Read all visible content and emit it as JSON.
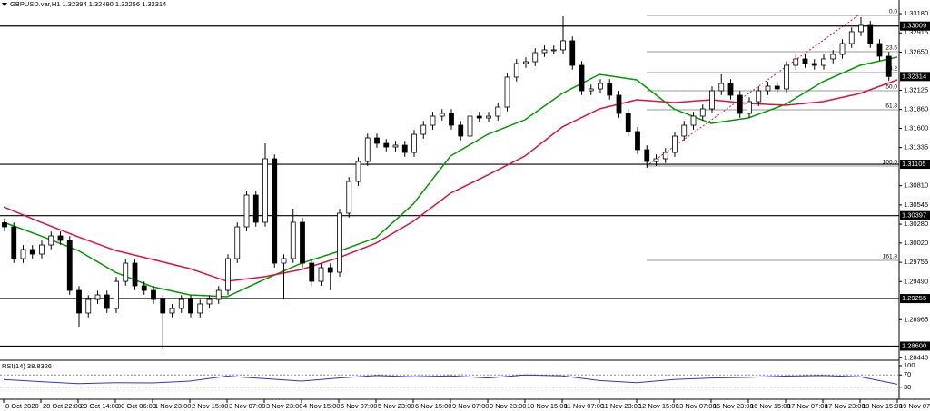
{
  "header": "GBPUSD.var,H1  1.32394 1.32490 1.32256 1.32314",
  "chart_data": [
    {
      "type": "candlestick",
      "categories": [
        "8 Oct 2020",
        "28 Oct 22:00",
        "29 Oct 14:00",
        "30 Oct 06:00",
        "1 Nov 23:00",
        "2 Nov 15:00",
        "3 Nov 07:00",
        "3 Nov 23:00",
        "4 Nov 15:00",
        "5 Nov 07:00",
        "5 Nov 23:00",
        "6 Nov 15:00",
        "9 Nov 07:00",
        "9 Nov 23:00",
        "10 Nov 15:00",
        "11 Nov 07:00",
        "11 Nov 23:00",
        "12 Nov 15:00",
        "13 Nov 07:00",
        "15 Nov 23:00",
        "16 Nov 15:00",
        "17 Nov 07:00",
        "17 Nov 23:00",
        "18 Nov 15:00",
        "19 Nov 07:00"
      ],
      "candles": [
        [
          1.303,
          1.3036,
          1.30183,
          1.30243
        ],
        [
          1.30243,
          1.30303,
          1.29746,
          1.29806
        ],
        [
          1.29806,
          1.29991,
          1.29746,
          1.29931
        ],
        [
          1.29931,
          1.29991,
          1.29808,
          1.29868
        ],
        [
          1.29868,
          1.30053,
          1.29808,
          1.29993
        ],
        [
          1.29993,
          1.30178,
          1.29933,
          1.30118
        ],
        [
          1.30118,
          1.30178,
          1.29996,
          1.30056
        ],
        [
          1.30056,
          1.30116,
          1.29308,
          1.29368
        ],
        [
          1.29368,
          1.29428,
          1.28868,
          1.29056
        ],
        [
          1.29056,
          1.29303,
          1.28996,
          1.29243
        ],
        [
          1.29243,
          1.29366,
          1.29183,
          1.29306
        ],
        [
          1.29306,
          1.29366,
          1.29058,
          1.29118
        ],
        [
          1.29118,
          1.29553,
          1.29058,
          1.29493
        ],
        [
          1.29493,
          1.29803,
          1.29433,
          1.29743
        ],
        [
          1.29743,
          1.29803,
          1.29371,
          1.29431
        ],
        [
          1.29431,
          1.29491,
          1.29308,
          1.29368
        ],
        [
          1.29368,
          1.29428,
          1.29183,
          1.29243
        ],
        [
          1.29243,
          1.29303,
          1.28556,
          1.29056
        ],
        [
          1.29056,
          1.29178,
          1.28996,
          1.29118
        ],
        [
          1.29118,
          1.29303,
          1.29058,
          1.29243
        ],
        [
          1.29243,
          1.29303,
          1.28996,
          1.29056
        ],
        [
          1.29056,
          1.29241,
          1.28996,
          1.29181
        ],
        [
          1.29181,
          1.29303,
          1.29121,
          1.29243
        ],
        [
          1.29243,
          1.29428,
          1.29183,
          1.29368
        ],
        [
          1.29368,
          1.29866,
          1.29308,
          1.29806
        ],
        [
          1.29806,
          1.30303,
          1.29746,
          1.30243
        ],
        [
          1.30243,
          1.30741,
          1.30183,
          1.30681
        ],
        [
          1.30681,
          1.30741,
          1.30246,
          1.30306
        ],
        [
          1.30306,
          1.31393,
          1.30246,
          1.31181
        ],
        [
          1.31181,
          1.31241,
          1.29683,
          1.29743
        ],
        [
          1.29743,
          1.29866,
          1.29243,
          1.29806
        ],
        [
          1.29806,
          1.30493,
          1.29746,
          1.30306
        ],
        [
          1.30306,
          1.30366,
          1.29683,
          1.29743
        ],
        [
          1.29743,
          1.29803,
          1.29433,
          1.29493
        ],
        [
          1.29493,
          1.29741,
          1.29433,
          1.29681
        ],
        [
          1.29681,
          1.29741,
          1.29368,
          1.29618
        ],
        [
          1.29618,
          1.30491,
          1.29558,
          1.30431
        ],
        [
          1.30431,
          1.30928,
          1.30371,
          1.30868
        ],
        [
          1.30868,
          1.31203,
          1.30808,
          1.31143
        ],
        [
          1.31143,
          1.31528,
          1.31083,
          1.31468
        ],
        [
          1.31468,
          1.31528,
          1.31333,
          1.31393
        ],
        [
          1.31393,
          1.31453,
          1.31283,
          1.31343
        ],
        [
          1.31343,
          1.31428,
          1.31283,
          1.31368
        ],
        [
          1.31368,
          1.31428,
          1.31208,
          1.31268
        ],
        [
          1.31268,
          1.31578,
          1.31208,
          1.31518
        ],
        [
          1.31518,
          1.31703,
          1.31458,
          1.31643
        ],
        [
          1.31643,
          1.31828,
          1.31583,
          1.31768
        ],
        [
          1.31768,
          1.31866,
          1.31708,
          1.31806
        ],
        [
          1.31806,
          1.31866,
          1.31583,
          1.31643
        ],
        [
          1.31643,
          1.31703,
          1.31433,
          1.31493
        ],
        [
          1.31493,
          1.31828,
          1.31433,
          1.31768
        ],
        [
          1.31768,
          1.31828,
          1.31683,
          1.31743
        ],
        [
          1.31743,
          1.31828,
          1.31683,
          1.31768
        ],
        [
          1.31768,
          1.31953,
          1.31708,
          1.31893
        ],
        [
          1.31893,
          1.32366,
          1.31833,
          1.32306
        ],
        [
          1.32306,
          1.32553,
          1.32246,
          1.32493
        ],
        [
          1.32493,
          1.32578,
          1.32433,
          1.32518
        ],
        [
          1.32518,
          1.32703,
          1.32458,
          1.32643
        ],
        [
          1.32643,
          1.32741,
          1.32583,
          1.32681
        ],
        [
          1.32681,
          1.32741,
          1.32621,
          1.32681
        ],
        [
          1.32681,
          1.33143,
          1.32621,
          1.32806
        ],
        [
          1.32806,
          1.32866,
          1.32408,
          1.32468
        ],
        [
          1.32468,
          1.32528,
          1.32058,
          1.32118
        ],
        [
          1.32118,
          1.32203,
          1.32058,
          1.32143
        ],
        [
          1.32143,
          1.32278,
          1.32083,
          1.32218
        ],
        [
          1.32218,
          1.32278,
          1.31996,
          1.32056
        ],
        [
          1.32056,
          1.32116,
          1.31746,
          1.31806
        ],
        [
          1.31806,
          1.31866,
          1.31496,
          1.31556
        ],
        [
          1.31556,
          1.31616,
          1.31246,
          1.31306
        ],
        [
          1.31306,
          1.31366,
          1.31056,
          1.31143
        ],
        [
          1.31143,
          1.31241,
          1.31083,
          1.31181
        ],
        [
          1.31181,
          1.31328,
          1.31121,
          1.31268
        ],
        [
          1.31268,
          1.31553,
          1.31208,
          1.31493
        ],
        [
          1.31493,
          1.31703,
          1.31433,
          1.31643
        ],
        [
          1.31643,
          1.31828,
          1.31583,
          1.31768
        ],
        [
          1.31768,
          1.31928,
          1.31708,
          1.31868
        ],
        [
          1.31868,
          1.32178,
          1.31808,
          1.32118
        ],
        [
          1.32118,
          1.32343,
          1.32058,
          1.32218
        ],
        [
          1.32218,
          1.32278,
          1.31996,
          1.32056
        ],
        [
          1.32056,
          1.32116,
          1.31746,
          1.31806
        ],
        [
          1.31806,
          1.32028,
          1.31746,
          1.31968
        ],
        [
          1.31968,
          1.32178,
          1.31908,
          1.32118
        ],
        [
          1.32118,
          1.32241,
          1.32058,
          1.32181
        ],
        [
          1.32181,
          1.32241,
          1.32083,
          1.32143
        ],
        [
          1.32143,
          1.32528,
          1.32083,
          1.32468
        ],
        [
          1.32468,
          1.32616,
          1.32408,
          1.32556
        ],
        [
          1.32556,
          1.32616,
          1.32433,
          1.32493
        ],
        [
          1.32493,
          1.32553,
          1.32408,
          1.32468
        ],
        [
          1.32468,
          1.32616,
          1.32408,
          1.32556
        ],
        [
          1.32556,
          1.32678,
          1.32496,
          1.32618
        ],
        [
          1.32618,
          1.32828,
          1.32558,
          1.32768
        ],
        [
          1.32768,
          1.32991,
          1.32708,
          1.32931
        ],
        [
          1.32931,
          1.33131,
          1.32871,
          1.33018
        ],
        [
          1.33018,
          1.33078,
          1.32708,
          1.32768
        ],
        [
          1.32768,
          1.32828,
          1.32533,
          1.32593
        ],
        [
          1.32593,
          1.32653,
          1.32256,
          1.32314
        ]
      ],
      "moving_averages": [
        {
          "color": "#009900",
          "values": [
            1.30306,
            1.30118,
            1.29918,
            1.29618,
            1.29418,
            1.29306,
            1.29281,
            1.29518,
            1.29743,
            1.29906,
            1.30093,
            1.30556,
            1.31218,
            1.31518,
            1.31718,
            1.32081,
            1.32343,
            1.32268,
            1.31868,
            1.31668,
            1.31743,
            1.31931,
            1.32243,
            1.32468,
            1.32581
          ]
        },
        {
          "color": "#dd1144",
          "values": [
            1.30518,
            1.30306,
            1.30106,
            1.29918,
            1.29793,
            1.29668,
            1.29493,
            1.29556,
            1.29656,
            1.29818,
            1.30018,
            1.30318,
            1.30706,
            1.30956,
            1.31218,
            1.31618,
            1.31868,
            1.31993,
            1.31956,
            1.31993,
            1.31943,
            1.31918,
            1.31968,
            1.32081,
            1.32268
          ]
        }
      ],
      "ylim": [
        1.28406,
        1.33368
      ],
      "yticks": [
        {
          "value": 1.3318,
          "label": "1.33180"
        },
        1.32915,
        {
          "value": 1.3265,
          "label": "1.32650"
        },
        1.32125,
        {
          "value": 1.3186,
          "label": "1.31860"
        },
        {
          "value": 1.316,
          "label": "1.31600"
        },
        1.31335,
        {
          "value": 1.3081,
          "label": "1.30810"
        },
        1.30545,
        {
          "value": 1.3028,
          "label": "1.30280"
        },
        {
          "value": 1.3002,
          "label": "1.30020"
        },
        1.29755,
        {
          "value": 1.2949,
          "label": "1.29490"
        },
        1.28965,
        {
          "value": 1.2844,
          "label": "1.28440"
        }
      ],
      "levels": [
        1.33009,
        1.31105,
        1.30397,
        1.29255,
        {
          "value": 1.286,
          "label": "1.28600"
        }
      ],
      "last_price": 1.32314,
      "fibonacci": {
        "color": "#777777",
        "trend_color": "#dd1144",
        "levels": [
          {
            "label": "0.0",
            "price": 1.33156
          },
          {
            "label": "23.6",
            "price": 1.32656
          },
          {
            "label": "38.2",
            "price": 1.32368
          },
          {
            "label": "50.0",
            "price": 1.32118
          },
          {
            "label": "61.8",
            "price": 1.31856
          },
          {
            "label": "100.0",
            "price": 1.31081
          },
          {
            "label": "161.8",
            "price": 1.29781
          }
        ]
      }
    },
    {
      "type": "line",
      "title": "RSI(14) 38.8326",
      "color": "#3333cc",
      "values": [
        55,
        48,
        42,
        45,
        44,
        50,
        66,
        58,
        50,
        60,
        68,
        64,
        67,
        60,
        70,
        67,
        52,
        45,
        55,
        60,
        62,
        66,
        68,
        64,
        40
      ],
      "ylim": [
        0,
        100
      ],
      "yticks": [
        100,
        70,
        30
      ],
      "levels": [
        70,
        30
      ]
    }
  ]
}
